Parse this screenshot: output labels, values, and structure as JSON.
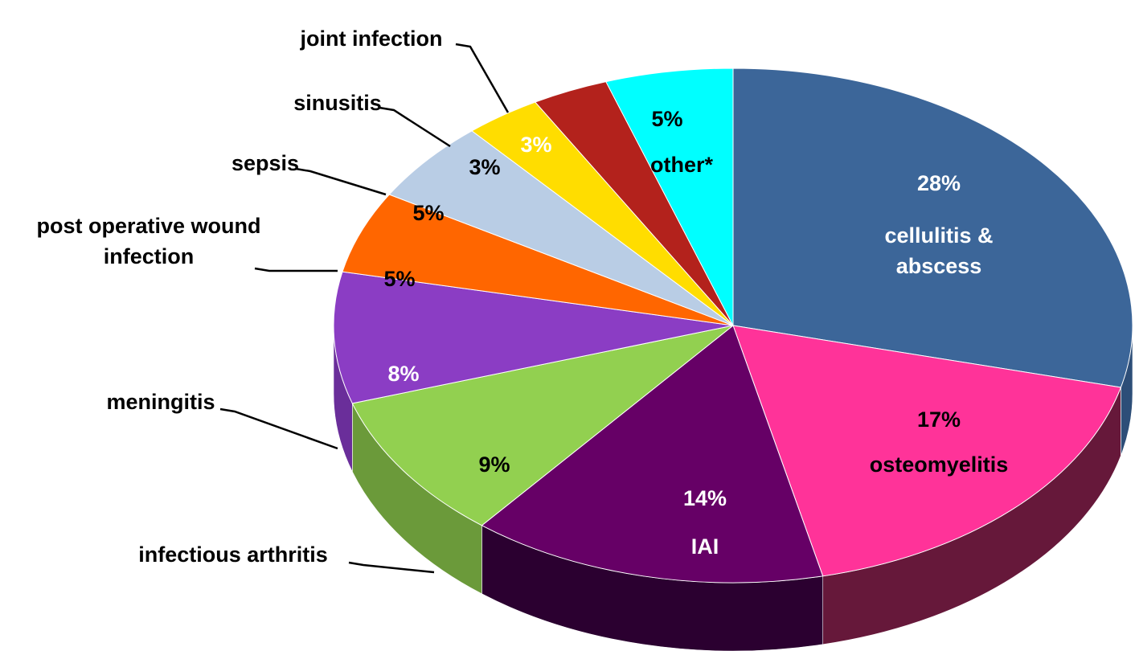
{
  "chart_data": {
    "type": "pie3d",
    "categories": [
      "cellulitis & abscess",
      "osteomyelitis",
      "IAI",
      "infectious arthritis",
      "meningitis",
      "post operative wound infection",
      "sepsis",
      "sinusitis",
      "joint infection",
      "other*"
    ],
    "values": [
      28,
      17,
      14,
      9,
      8,
      5,
      5,
      3,
      3,
      5
    ],
    "value_labels": [
      "28%",
      "17%",
      "14%",
      "9%",
      "8%",
      "5%",
      "5%",
      "3%",
      "3%",
      "5%"
    ],
    "colors": [
      "#3c6699",
      "#ff3399",
      "#660066",
      "#92d050",
      "#8b3dc4",
      "#ff6600",
      "#b9cde5",
      "#ffdd00",
      "#b3221c",
      "#00ffff"
    ],
    "side_colors": [
      "#2d4e78",
      "#66183a",
      "#2b0030",
      "#6b9a3a",
      "#6a2e9a",
      "#b84a00",
      "#8898aa",
      "#b8a000",
      "#7a1712",
      "#00b0b0"
    ],
    "label_colors": [
      "#ffffff",
      "#000000",
      "#ffffff",
      "#000000",
      "#ffffff",
      "#000000",
      "#000000",
      "#000000",
      "#ffffff",
      "#000000"
    ]
  }
}
